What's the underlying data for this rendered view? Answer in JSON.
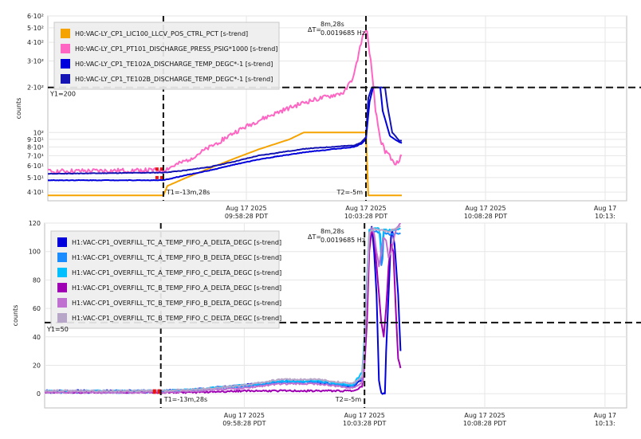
{
  "chart_data": [
    {
      "type": "line",
      "ylabel": "counts",
      "y_scale": "log",
      "ylim": [
        35,
        600
      ],
      "y_ticks": [
        {
          "v": 40,
          "label": "4·10¹"
        },
        {
          "v": 50,
          "label": "5·10¹"
        },
        {
          "v": 60,
          "label": "6·10¹"
        },
        {
          "v": 70,
          "label": "7·10¹"
        },
        {
          "v": 80,
          "label": "8·10¹"
        },
        {
          "v": 90,
          "label": "9·10¹"
        },
        {
          "v": 100,
          "label": "10²"
        },
        {
          "v": 200,
          "label": "2·10²"
        },
        {
          "v": 300,
          "label": "3·10²"
        },
        {
          "v": 400,
          "label": "4·10²"
        },
        {
          "v": 500,
          "label": "5·10²"
        },
        {
          "v": 600,
          "label": "6·10²"
        }
      ],
      "xlim": [
        -18.3,
        5.9
      ],
      "x_units": "minutes relative to Aug 17 2025 10:08:28 PDT",
      "x_ticks": [
        {
          "v": -10,
          "l1": "Aug 17 2025",
          "l2": "09:58:28 PDT"
        },
        {
          "v": -5,
          "l1": "Aug 17 2025",
          "l2": "10:03:28 PDT"
        },
        {
          "v": 0,
          "l1": "Aug 17 2025",
          "l2": "10:08:28 PDT"
        },
        {
          "v": 5,
          "l1": "Aug 17",
          "l2": "10:13:"
        }
      ],
      "cursors": {
        "t1": -13.47,
        "t2": -5.0,
        "t1_label": "T1=-13m,28s",
        "t2_label": "T2=-5m",
        "y1": 200,
        "y1_label": "Y1=200"
      },
      "delta": {
        "label": "ΔT=",
        "value": "8m,28s",
        "freq": "0.0019685 Hz"
      },
      "series": [
        {
          "name": "H0:VAC-LY_CP1_LIC100_LLCV_POS_CTRL_PCT [s-trend]",
          "color": "#f5a300",
          "noise": 0,
          "points": [
            [
              -18.3,
              38
            ],
            [
              -13.47,
              38
            ],
            [
              -13.3,
              44
            ],
            [
              -12.5,
              50
            ],
            [
              -11.5,
              58
            ],
            [
              -10.5,
              67
            ],
            [
              -9.5,
              77
            ],
            [
              -8.2,
              90
            ],
            [
              -7.6,
              100
            ],
            [
              -6.5,
              100
            ],
            [
              -5.0,
              100
            ],
            [
              -4.9,
              38
            ],
            [
              -3.5,
              38
            ]
          ]
        },
        {
          "name": "H0:VAC-LY_CP1_PT101_DISCHARGE_PRESS_PSIG*1000 [s-trend]",
          "color": "#ff66c4",
          "noise": 0.035,
          "points": [
            [
              -18.3,
              55
            ],
            [
              -13.47,
              56
            ],
            [
              -12.5,
              65
            ],
            [
              -11.5,
              80
            ],
            [
              -10.5,
              100
            ],
            [
              -9.5,
              120
            ],
            [
              -8.5,
              140
            ],
            [
              -7.5,
              160
            ],
            [
              -6.5,
              175
            ],
            [
              -5.9,
              185
            ],
            [
              -5.5,
              240
            ],
            [
              -5.2,
              400
            ],
            [
              -5.05,
              480
            ],
            [
              -4.95,
              460
            ],
            [
              -4.8,
              300
            ],
            [
              -4.6,
              140
            ],
            [
              -4.4,
              90
            ],
            [
              -4.2,
              75
            ],
            [
              -4.0,
              70
            ],
            [
              -3.8,
              60
            ],
            [
              -3.5,
              70
            ]
          ]
        },
        {
          "name": "H0:VAC-LY_CP1_TE102A_DISCHARGE_TEMP_DEGC*-1 [s-trend]",
          "color": "#0000dd",
          "noise": 0.004,
          "points": [
            [
              -18.3,
              48
            ],
            [
              -13.47,
              48
            ],
            [
              -12.5,
              52
            ],
            [
              -11.5,
              56
            ],
            [
              -10.5,
              61
            ],
            [
              -9.5,
              66
            ],
            [
              -8.5,
              70
            ],
            [
              -7.5,
              74
            ],
            [
              -6.5,
              77
            ],
            [
              -5.5,
              80
            ],
            [
              -5.2,
              84
            ],
            [
              -5.0,
              90
            ],
            [
              -4.85,
              160
            ],
            [
              -4.7,
              200
            ],
            [
              -4.4,
              200
            ],
            [
              -4.3,
              140
            ],
            [
              -4.0,
              95
            ],
            [
              -3.6,
              86
            ],
            [
              -3.5,
              85
            ]
          ]
        },
        {
          "name": "H0:VAC-LY_CP1_TE102B_DISCHARGE_TEMP_DEGC*-1 [s-trend]",
          "color": "#1414b4",
          "noise": 0.004,
          "points": [
            [
              -18.3,
              53
            ],
            [
              -13.47,
              54
            ],
            [
              -12.5,
              56
            ],
            [
              -11.5,
              59
            ],
            [
              -10.5,
              64
            ],
            [
              -9.5,
              70
            ],
            [
              -8.5,
              74
            ],
            [
              -7.5,
              78
            ],
            [
              -6.5,
              80
            ],
            [
              -5.5,
              82
            ],
            [
              -5.2,
              86
            ],
            [
              -5.0,
              93
            ],
            [
              -4.9,
              170
            ],
            [
              -4.75,
              200
            ],
            [
              -4.2,
              200
            ],
            [
              -4.1,
              150
            ],
            [
              -3.9,
              100
            ],
            [
              -3.6,
              88
            ],
            [
              -3.5,
              88
            ]
          ]
        }
      ]
    },
    {
      "type": "line",
      "ylabel": "counts",
      "ylim": [
        -10,
        120
      ],
      "y_ticks": [
        {
          "v": 0,
          "label": "0"
        },
        {
          "v": 20,
          "label": "20"
        },
        {
          "v": 40,
          "label": "40"
        },
        {
          "v": 60,
          "label": "60"
        },
        {
          "v": 80,
          "label": "80"
        },
        {
          "v": 100,
          "label": "100"
        },
        {
          "v": 120,
          "label": "120"
        }
      ],
      "xlim": [
        -18.3,
        5.9
      ],
      "x_units": "minutes relative to Aug 17 2025 10:08:28 PDT",
      "x_ticks": [
        {
          "v": -10,
          "l1": "Aug 17 2025",
          "l2": "09:58:28 PDT"
        },
        {
          "v": -5,
          "l1": "Aug 17 2025",
          "l2": "10:03:28 PDT"
        },
        {
          "v": 0,
          "l1": "Aug 17 2025",
          "l2": "10:08:28 PDT"
        },
        {
          "v": 5,
          "l1": "Aug 17",
          "l2": "10:13:"
        }
      ],
      "cursors": {
        "t1": -13.47,
        "t2": -5.0,
        "t1_label": "T1=-13m,28s",
        "t2_label": "T2=-5m",
        "y1": 50,
        "y1_label": "Y1=50"
      },
      "delta": {
        "label": "ΔT=",
        "value": "8m,28s",
        "freq": "0.0019685 Hz"
      },
      "series": [
        {
          "name": "H1:VAC-CP1_OVERFILL_TC_A_TEMP_FIFO_A_DELTA_DEGC [s-trend]",
          "color": "#0000dd",
          "noise": 0.6,
          "points": [
            [
              -18.3,
              2
            ],
            [
              -13.47,
              2
            ],
            [
              -12,
              3
            ],
            [
              -10,
              6
            ],
            [
              -8.5,
              9
            ],
            [
              -7,
              8
            ],
            [
              -6,
              6
            ],
            [
              -5.5,
              5
            ],
            [
              -5.1,
              10
            ],
            [
              -5.0,
              30
            ],
            [
              -4.9,
              60
            ],
            [
              -4.8,
              110
            ],
            [
              -4.7,
              118
            ],
            [
              -4.6,
              100
            ],
            [
              -4.5,
              70
            ],
            [
              -4.4,
              10
            ],
            [
              -4.3,
              0
            ],
            [
              -4.15,
              0
            ],
            [
              -4.1,
              30
            ],
            [
              -4.0,
              70
            ],
            [
              -3.9,
              110
            ],
            [
              -3.85,
              116
            ],
            [
              -3.75,
              105
            ],
            [
              -3.6,
              70
            ],
            [
              -3.5,
              30
            ]
          ]
        },
        {
          "name": "H1:VAC-CP1_OVERFILL_TC_A_TEMP_FIFO_B_DELTA_DEGC [s-trend]",
          "color": "#1a8cff",
          "noise": 0.6,
          "points": [
            [
              -18.3,
              1
            ],
            [
              -13.47,
              1
            ],
            [
              -12,
              3
            ],
            [
              -10,
              5
            ],
            [
              -8.5,
              8
            ],
            [
              -7,
              8
            ],
            [
              -6,
              6
            ],
            [
              -5.5,
              5
            ],
            [
              -5.1,
              12
            ],
            [
              -5.0,
              35
            ],
            [
              -4.9,
              70
            ],
            [
              -4.8,
              112
            ],
            [
              -4.7,
              115
            ],
            [
              -4.5,
              114
            ],
            [
              -4.35,
              113
            ],
            [
              -4.3,
              90
            ],
            [
              -4.25,
              95
            ],
            [
              -4.2,
              113
            ],
            [
              -3.9,
              112
            ],
            [
              -3.5,
              113
            ]
          ]
        },
        {
          "name": "H1:VAC-CP1_OVERFILL_TC_A_TEMP_FIFO_C_DELTA_DEGC [s-trend]",
          "color": "#00bfff",
          "noise": 0.6,
          "points": [
            [
              -18.3,
              2
            ],
            [
              -13.47,
              2
            ],
            [
              -12,
              3
            ],
            [
              -10,
              6
            ],
            [
              -8.5,
              9
            ],
            [
              -7,
              9
            ],
            [
              -6,
              7
            ],
            [
              -5.5,
              6
            ],
            [
              -5.1,
              15
            ],
            [
              -5.0,
              40
            ],
            [
              -4.9,
              80
            ],
            [
              -4.8,
              115
            ],
            [
              -4.6,
              117
            ],
            [
              -4.4,
              116
            ],
            [
              -4.3,
              100
            ],
            [
              -4.2,
              115
            ],
            [
              -3.8,
              115
            ],
            [
              -3.5,
              116
            ]
          ]
        },
        {
          "name": "H1:VAC-CP1_OVERFILL_TC_B_TEMP_FIFO_A_DELTA_DEGC [s-trend]",
          "color": "#a000b4",
          "noise": 0.6,
          "points": [
            [
              -18.3,
              1
            ],
            [
              -13.47,
              1
            ],
            [
              -12,
              1
            ],
            [
              -10,
              2
            ],
            [
              -8.5,
              2
            ],
            [
              -7,
              2
            ],
            [
              -6,
              2
            ],
            [
              -5.5,
              2
            ],
            [
              -5.1,
              5
            ],
            [
              -5.0,
              20
            ],
            [
              -4.9,
              50
            ],
            [
              -4.8,
              100
            ],
            [
              -4.7,
              115
            ],
            [
              -4.6,
              110
            ],
            [
              -4.5,
              90
            ],
            [
              -4.4,
              70
            ],
            [
              -4.3,
              50
            ],
            [
              -4.2,
              40
            ],
            [
              -4.1,
              60
            ],
            [
              -4.0,
              90
            ],
            [
              -3.9,
              105
            ],
            [
              -3.8,
              100
            ],
            [
              -3.7,
              60
            ],
            [
              -3.6,
              25
            ],
            [
              -3.5,
              18
            ]
          ]
        },
        {
          "name": "H1:VAC-CP1_OVERFILL_TC_B_TEMP_FIFO_B_DELTA_DEGC [s-trend]",
          "color": "#c070d0",
          "noise": 0.6,
          "points": [
            [
              -18.3,
              1
            ],
            [
              -13.47,
              1
            ],
            [
              -12,
              2
            ],
            [
              -10,
              4
            ],
            [
              -8.5,
              7
            ],
            [
              -7,
              7
            ],
            [
              -6,
              5
            ],
            [
              -5.5,
              4
            ],
            [
              -5.1,
              8
            ],
            [
              -5.0,
              30
            ],
            [
              -4.9,
              70
            ],
            [
              -4.8,
              110
            ],
            [
              -4.7,
              117
            ],
            [
              -4.6,
              112
            ],
            [
              -4.5,
              100
            ],
            [
              -4.4,
              90
            ],
            [
              -4.3,
              100
            ],
            [
              -4.2,
              110
            ],
            [
              -4.1,
              108
            ],
            [
              -4.0,
              96
            ],
            [
              -3.9,
              100
            ],
            [
              -3.7,
              115
            ],
            [
              -3.6,
              118
            ],
            [
              -3.5,
              120
            ]
          ]
        },
        {
          "name": "H1:VAC-CP1_OVERFILL_TC_B_TEMP_FIFO_C_DELTA_DEGC [s-trend]",
          "color": "#b8a6c8",
          "noise": 0.6,
          "points": [
            [
              -18.3,
              2
            ],
            [
              -13.47,
              2
            ],
            [
              -12,
              3
            ],
            [
              -10,
              6
            ],
            [
              -8.5,
              10
            ],
            [
              -7,
              10
            ],
            [
              -6,
              8
            ],
            [
              -5.5,
              7
            ],
            [
              -5.1,
              12
            ],
            [
              -5.0,
              35
            ],
            [
              -4.9,
              75
            ],
            [
              -4.8,
              113
            ],
            [
              -4.6,
              116
            ],
            [
              -4.3,
              115
            ],
            [
              -4.0,
              114
            ],
            [
              -3.7,
              116
            ],
            [
              -3.5,
              118
            ]
          ]
        }
      ]
    }
  ]
}
